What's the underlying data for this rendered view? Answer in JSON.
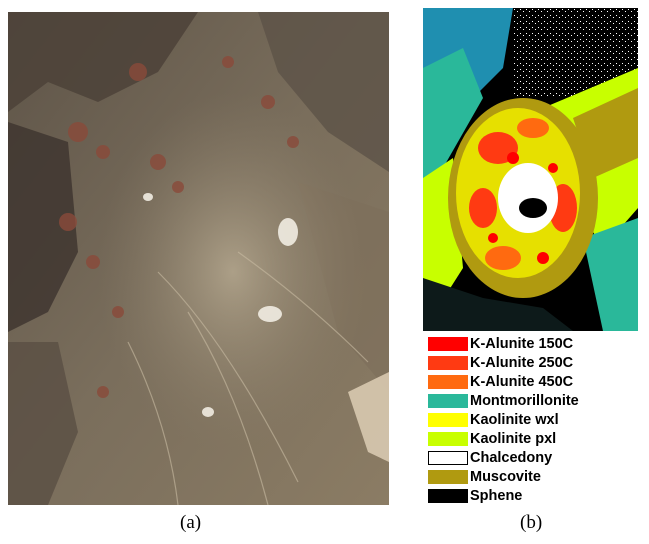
{
  "panels": {
    "a": {
      "caption": "(a)"
    },
    "b": {
      "caption": "(b)"
    }
  },
  "legend": [
    {
      "label": "K-Alunite 150C",
      "color": "#ff0000"
    },
    {
      "label": "K-Alunite 250C",
      "color": "#ff3a12"
    },
    {
      "label": "K-Alunite 450C",
      "color": "#ff6a10"
    },
    {
      "label": "Montmorillonite",
      "color": "#2ab89a"
    },
    {
      "label": "Kaolinite wxl",
      "color": "#ffff00"
    },
    {
      "label": "Kaolinite pxl",
      "color": "#c8ff00"
    },
    {
      "label": "Chalcedony",
      "color": "#ffffff"
    },
    {
      "label": "Muscovite",
      "color": "#b09a10"
    },
    {
      "label": "Sphene",
      "color": "#000000"
    }
  ]
}
